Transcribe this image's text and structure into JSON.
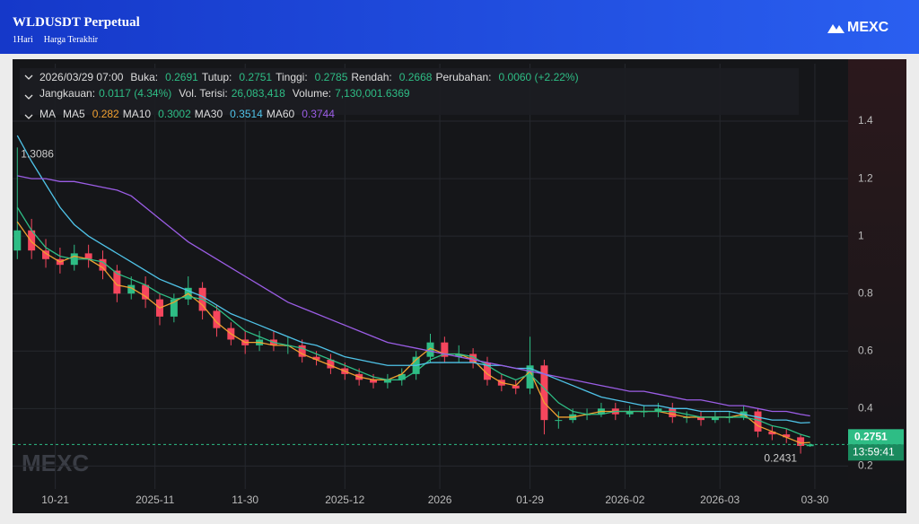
{
  "header": {
    "title": "WLDUSDT Perpetual",
    "interval": "1Hari",
    "price_type": "Harga Terakhir",
    "logo": "MEXC"
  },
  "chart_data": {
    "type": "candlestick",
    "watermark": "MEXC",
    "up_color": "#2ebd85",
    "down_color": "#f6465d",
    "x": [
      "2025-10-13",
      "2025-10-16",
      "2025-10-19",
      "2025-10-22",
      "2025-10-25",
      "2025-10-28",
      "2025-10-31",
      "2025-11-03",
      "2025-11-06",
      "2025-11-09",
      "2025-11-12",
      "2025-11-15",
      "2025-11-18",
      "2025-11-21",
      "2025-11-24",
      "2025-11-27",
      "2025-11-30",
      "2025-12-03",
      "2025-12-06",
      "2025-12-09",
      "2025-12-12",
      "2025-12-15",
      "2025-12-18",
      "2025-12-21",
      "2025-12-24",
      "2025-12-27",
      "2025-12-30",
      "2026-01-02",
      "2026-01-05",
      "2026-01-08",
      "2026-01-11",
      "2026-01-14",
      "2026-01-17",
      "2026-01-20",
      "2026-01-23",
      "2026-01-26",
      "2026-01-29",
      "2026-02-01",
      "2026-02-04",
      "2026-02-07",
      "2026-02-10",
      "2026-02-13",
      "2026-02-16",
      "2026-02-19",
      "2026-02-22",
      "2026-02-25",
      "2026-02-28",
      "2026-03-03",
      "2026-03-06",
      "2026-03-09",
      "2026-03-12",
      "2026-03-15",
      "2026-03-18",
      "2026-03-21",
      "2026-03-24",
      "2026-03-27",
      "2026-03-29"
    ],
    "open": [
      0.95,
      1.02,
      0.95,
      0.92,
      0.9,
      0.94,
      0.92,
      0.88,
      0.8,
      0.83,
      0.78,
      0.72,
      0.78,
      0.82,
      0.74,
      0.68,
      0.64,
      0.62,
      0.64,
      0.62,
      0.62,
      0.58,
      0.57,
      0.54,
      0.52,
      0.5,
      0.49,
      0.5,
      0.52,
      0.58,
      0.63,
      0.58,
      0.59,
      0.56,
      0.5,
      0.48,
      0.47,
      0.55,
      0.36,
      0.36,
      0.38,
      0.38,
      0.4,
      0.38,
      0.39,
      0.39,
      0.4,
      0.37,
      0.37,
      0.36,
      0.37,
      0.37,
      0.39,
      0.32,
      0.31,
      0.3,
      0.2691
    ],
    "high": [
      1.3086,
      1.06,
      0.99,
      0.96,
      0.97,
      0.97,
      0.95,
      0.9,
      0.86,
      0.86,
      0.8,
      0.8,
      0.86,
      0.84,
      0.76,
      0.7,
      0.67,
      0.67,
      0.67,
      0.65,
      0.64,
      0.6,
      0.59,
      0.56,
      0.54,
      0.52,
      0.52,
      0.54,
      0.6,
      0.66,
      0.65,
      0.62,
      0.61,
      0.58,
      0.52,
      0.5,
      0.65,
      0.57,
      0.39,
      0.4,
      0.4,
      0.42,
      0.42,
      0.41,
      0.41,
      0.42,
      0.42,
      0.39,
      0.39,
      0.39,
      0.39,
      0.41,
      0.4,
      0.34,
      0.33,
      0.31,
      0.2785
    ],
    "low": [
      0.92,
      0.92,
      0.89,
      0.87,
      0.88,
      0.89,
      0.85,
      0.77,
      0.78,
      0.75,
      0.69,
      0.7,
      0.76,
      0.71,
      0.65,
      0.62,
      0.59,
      0.6,
      0.6,
      0.59,
      0.56,
      0.55,
      0.52,
      0.5,
      0.48,
      0.47,
      0.47,
      0.48,
      0.5,
      0.56,
      0.56,
      0.56,
      0.54,
      0.48,
      0.46,
      0.45,
      0.45,
      0.31,
      0.33,
      0.35,
      0.36,
      0.37,
      0.36,
      0.37,
      0.37,
      0.37,
      0.35,
      0.35,
      0.34,
      0.35,
      0.35,
      0.36,
      0.3,
      0.29,
      0.28,
      0.2431,
      0.2668
    ],
    "close": [
      1.02,
      0.95,
      0.92,
      0.9,
      0.94,
      0.92,
      0.88,
      0.8,
      0.83,
      0.78,
      0.72,
      0.78,
      0.82,
      0.74,
      0.68,
      0.64,
      0.62,
      0.64,
      0.62,
      0.62,
      0.58,
      0.57,
      0.54,
      0.52,
      0.5,
      0.49,
      0.5,
      0.52,
      0.58,
      0.63,
      0.58,
      0.59,
      0.56,
      0.5,
      0.48,
      0.47,
      0.55,
      0.36,
      0.36,
      0.38,
      0.38,
      0.4,
      0.38,
      0.39,
      0.39,
      0.4,
      0.37,
      0.37,
      0.36,
      0.37,
      0.37,
      0.39,
      0.32,
      0.31,
      0.3,
      0.27,
      0.2751
    ],
    "lines": [
      {
        "name": "MA5",
        "color": "#f0a030",
        "values": [
          1.05,
          0.98,
          0.94,
          0.91,
          0.93,
          0.92,
          0.89,
          0.83,
          0.82,
          0.79,
          0.75,
          0.77,
          0.8,
          0.76,
          0.7,
          0.66,
          0.63,
          0.63,
          0.62,
          0.62,
          0.59,
          0.57,
          0.55,
          0.53,
          0.51,
          0.5,
          0.5,
          0.52,
          0.57,
          0.61,
          0.59,
          0.59,
          0.57,
          0.52,
          0.49,
          0.48,
          0.53,
          0.42,
          0.37,
          0.37,
          0.38,
          0.39,
          0.39,
          0.39,
          0.39,
          0.39,
          0.38,
          0.37,
          0.37,
          0.37,
          0.37,
          0.38,
          0.34,
          0.32,
          0.3,
          0.28,
          0.282
        ]
      },
      {
        "name": "MA10",
        "color": "#2ebd85",
        "values": [
          1.1,
          1.02,
          0.96,
          0.93,
          0.92,
          0.92,
          0.91,
          0.87,
          0.85,
          0.83,
          0.8,
          0.78,
          0.79,
          0.78,
          0.75,
          0.71,
          0.67,
          0.65,
          0.63,
          0.62,
          0.61,
          0.59,
          0.57,
          0.55,
          0.53,
          0.51,
          0.5,
          0.5,
          0.53,
          0.57,
          0.59,
          0.59,
          0.58,
          0.55,
          0.52,
          0.5,
          0.52,
          0.47,
          0.42,
          0.39,
          0.38,
          0.38,
          0.39,
          0.39,
          0.39,
          0.39,
          0.39,
          0.38,
          0.37,
          0.37,
          0.37,
          0.37,
          0.36,
          0.34,
          0.33,
          0.31,
          0.3002
        ]
      },
      {
        "name": "MA30",
        "color": "#4fc3e8",
        "values": [
          1.35,
          1.26,
          1.18,
          1.1,
          1.04,
          1.0,
          0.97,
          0.94,
          0.91,
          0.88,
          0.85,
          0.83,
          0.81,
          0.79,
          0.76,
          0.73,
          0.71,
          0.69,
          0.67,
          0.65,
          0.63,
          0.62,
          0.6,
          0.58,
          0.57,
          0.56,
          0.55,
          0.55,
          0.55,
          0.56,
          0.56,
          0.56,
          0.56,
          0.55,
          0.55,
          0.54,
          0.54,
          0.52,
          0.5,
          0.48,
          0.46,
          0.44,
          0.43,
          0.42,
          0.41,
          0.41,
          0.4,
          0.4,
          0.39,
          0.39,
          0.39,
          0.38,
          0.37,
          0.36,
          0.36,
          0.35,
          0.3514
        ]
      },
      {
        "name": "MA60",
        "color": "#9b5de5",
        "values": [
          1.21,
          1.2,
          1.2,
          1.19,
          1.19,
          1.18,
          1.17,
          1.16,
          1.14,
          1.1,
          1.06,
          1.02,
          0.98,
          0.95,
          0.92,
          0.89,
          0.86,
          0.83,
          0.8,
          0.77,
          0.75,
          0.73,
          0.71,
          0.69,
          0.67,
          0.65,
          0.63,
          0.62,
          0.61,
          0.6,
          0.59,
          0.58,
          0.57,
          0.56,
          0.55,
          0.54,
          0.53,
          0.52,
          0.51,
          0.5,
          0.49,
          0.48,
          0.47,
          0.46,
          0.46,
          0.45,
          0.44,
          0.43,
          0.43,
          0.42,
          0.41,
          0.41,
          0.4,
          0.39,
          0.39,
          0.38,
          0.3744
        ]
      }
    ],
    "xlim": [
      "2025-10-12",
      "2026-04-06"
    ],
    "xticks": [
      {
        "value": "2025-10-21",
        "label": "10-21"
      },
      {
        "value": "2025-11-11",
        "label": "2025-11"
      },
      {
        "value": "2025-11-30",
        "label": "11-30"
      },
      {
        "value": "2025-12-21",
        "label": "2025-12"
      },
      {
        "value": "2026-01-10",
        "label": "2026"
      },
      {
        "value": "2026-01-29",
        "label": "01-29"
      },
      {
        "value": "2026-02-18",
        "label": "2026-02"
      },
      {
        "value": "2026-03-10",
        "label": "2026-03"
      },
      {
        "value": "2026-03-30",
        "label": "03-30"
      }
    ],
    "ylim": [
      0.12,
      1.6
    ],
    "yticks": [
      0.2,
      0.4,
      0.6,
      0.8,
      1,
      1.2,
      1.4
    ],
    "grid": true,
    "countdown": "13:59:41",
    "info": {
      "date": "2026/03/29 07:00",
      "labels": [
        "Buka:",
        "Tutup:",
        "Tinggi:",
        "Rendah:",
        "Perubahan:",
        "Jangkauan:",
        "Vol. Terisi:",
        "Volume:"
      ],
      "change": "0.0060 (+2.22%)",
      "range": "0.0117 (4.34%)",
      "vol_filled": "26,083,418",
      "volume": "7,130,001.6369",
      "ma_label": "MA"
    }
  }
}
